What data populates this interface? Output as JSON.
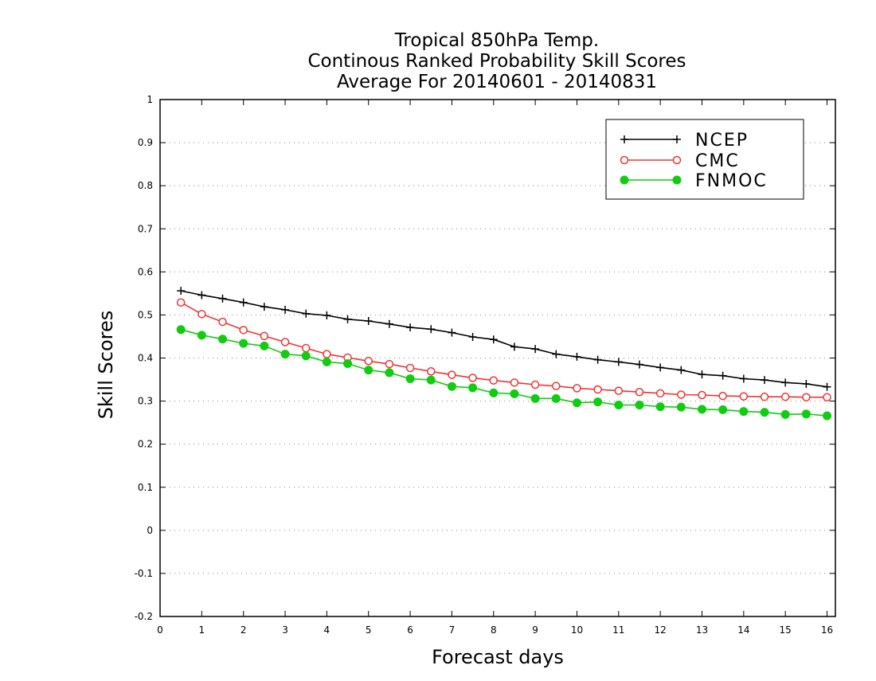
{
  "chart_data": {
    "type": "line",
    "title_lines": [
      "Tropical 850hPa Temp.",
      "Continous Ranked Probability Skill Scores",
      "Average For 20140601 - 20140831"
    ],
    "xlabel": "Forecast days",
    "ylabel": "Skill Scores",
    "xlim": [
      0,
      16.2
    ],
    "ylim": [
      -0.2,
      1
    ],
    "x_ticks": [
      0,
      1,
      2,
      3,
      4,
      5,
      6,
      7,
      8,
      9,
      10,
      11,
      12,
      13,
      14,
      15,
      16
    ],
    "y_ticks": [
      -0.2,
      -0.1,
      0,
      0.1,
      0.2,
      0.3,
      0.4,
      0.5,
      0.6,
      0.7,
      0.8,
      0.9,
      1
    ],
    "y_tick_labels": [
      "-0.2",
      "-0.1",
      "0",
      "0.1",
      "0.2",
      "0.3",
      "0.4",
      "0.5",
      "0.6",
      "0.7",
      "0.8",
      "0.9",
      "1"
    ],
    "grid": "horizontal dotted",
    "legend_position": "top-right",
    "x": [
      0.5,
      1,
      1.5,
      2,
      2.5,
      3,
      3.5,
      4,
      4.5,
      5,
      5.5,
      6,
      6.5,
      7,
      7.5,
      8,
      8.5,
      9,
      9.5,
      10,
      10.5,
      11,
      11.5,
      12,
      12.5,
      13,
      13.5,
      14,
      14.5,
      15,
      15.5,
      16
    ],
    "series": [
      {
        "name": "NCEP",
        "color": "#000000",
        "marker": "plus",
        "values": [
          0.556,
          0.546,
          0.538,
          0.529,
          0.519,
          0.512,
          0.503,
          0.499,
          0.49,
          0.486,
          0.479,
          0.471,
          0.467,
          0.459,
          0.449,
          0.443,
          0.426,
          0.421,
          0.409,
          0.403,
          0.396,
          0.391,
          0.385,
          0.378,
          0.372,
          0.362,
          0.359,
          0.352,
          0.349,
          0.343,
          0.34,
          0.333
        ]
      },
      {
        "name": "CMC",
        "color": "#ee3333",
        "marker": "open-circle",
        "values": [
          0.529,
          0.502,
          0.484,
          0.465,
          0.451,
          0.437,
          0.423,
          0.409,
          0.401,
          0.393,
          0.386,
          0.377,
          0.369,
          0.361,
          0.354,
          0.348,
          0.343,
          0.338,
          0.335,
          0.33,
          0.327,
          0.324,
          0.321,
          0.318,
          0.315,
          0.314,
          0.312,
          0.311,
          0.31,
          0.31,
          0.309,
          0.309
        ]
      },
      {
        "name": "FNMOC",
        "color": "#11cc11",
        "marker": "filled-circle",
        "values": [
          0.466,
          0.453,
          0.444,
          0.434,
          0.428,
          0.409,
          0.405,
          0.391,
          0.387,
          0.372,
          0.366,
          0.352,
          0.349,
          0.334,
          0.331,
          0.319,
          0.317,
          0.306,
          0.306,
          0.296,
          0.298,
          0.291,
          0.291,
          0.287,
          0.286,
          0.281,
          0.28,
          0.276,
          0.274,
          0.269,
          0.27,
          0.266
        ]
      }
    ]
  }
}
